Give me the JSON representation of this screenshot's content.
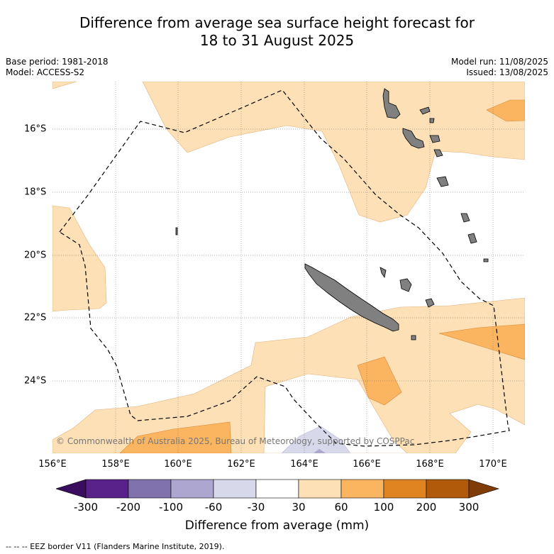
{
  "title": {
    "line1": "Difference from average sea surface height forecast for",
    "line2": "18 to 31 August 2025"
  },
  "meta": {
    "base_period": "Base period: 1981-2018",
    "model": "Model: ACCESS-S2",
    "model_run": "Model run: 11/08/2025",
    "issued": "Issued: 13/08/2025"
  },
  "map": {
    "copyright": "© Commonwealth of Australia 2025, Bureau of Meteorology, supported by COSPPac",
    "lon_labels": [
      "156°E",
      "158°E",
      "160°E",
      "162°E",
      "164°E",
      "166°E",
      "168°E",
      "170°E"
    ],
    "lat_labels": [
      "16°S",
      "18°S",
      "20°S",
      "22°S",
      "24°S"
    ],
    "colors": {
      "land": "#808080",
      "anomaly_30_60": "#fde0b6",
      "anomaly_60_100": "#fbb560",
      "anomaly_neg_60_30": "#d8d8eb",
      "eez_line": "#000000"
    }
  },
  "colorbar": {
    "title": "Difference from average (mm)",
    "ticks": [
      "-300",
      "-200",
      "-100",
      "-60",
      "-30",
      "30",
      "60",
      "100",
      "200",
      "300"
    ],
    "colors": [
      "#3a0d5e",
      "#58228a",
      "#7f72ad",
      "#aca6d0",
      "#d8d8eb",
      "#ffffff",
      "#fde0b6",
      "#fbb560",
      "#e08321",
      "#b05a0a",
      "#7f3b08"
    ]
  },
  "footer": {
    "legend": "-- -- -- EEZ border V11 (Flanders Marine Institute, 2019)."
  }
}
